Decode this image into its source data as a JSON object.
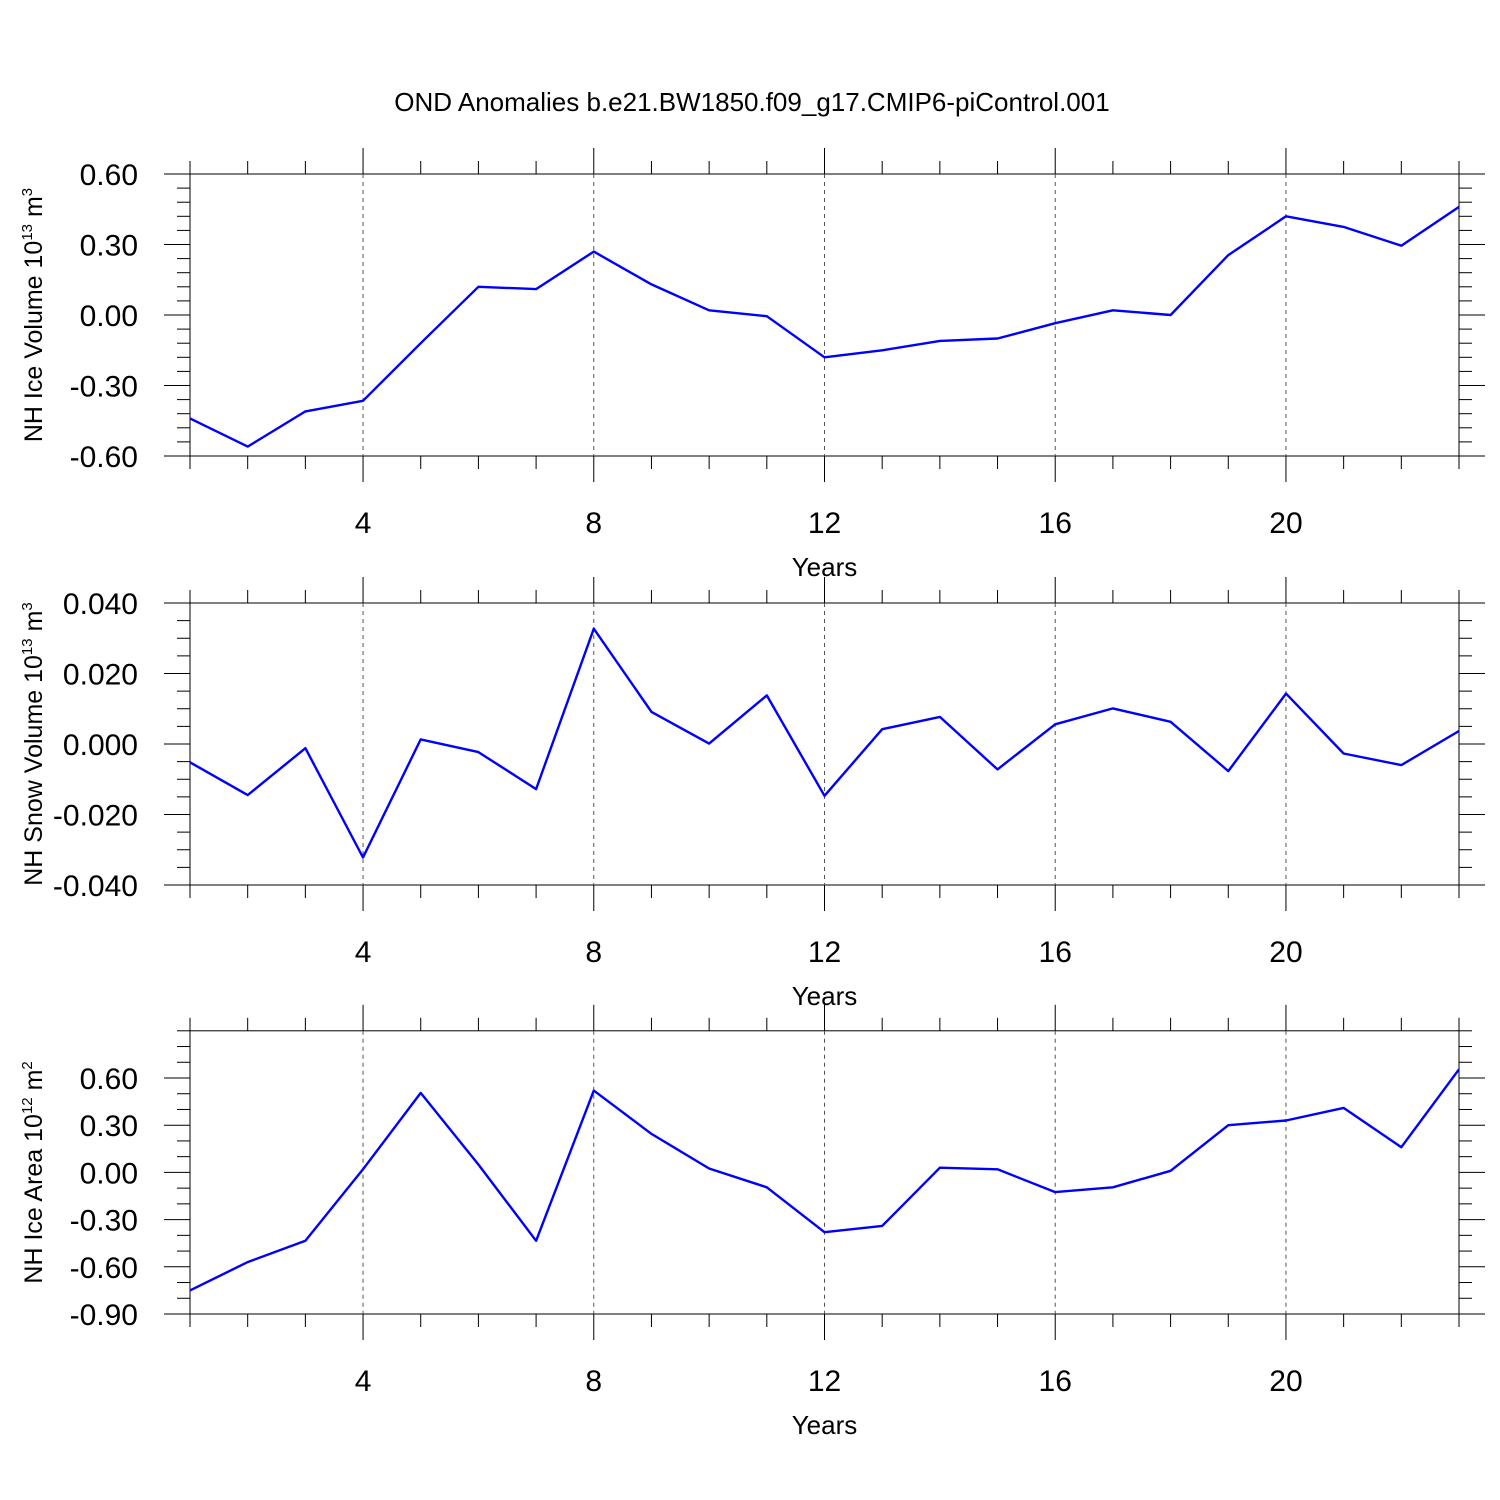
{
  "figure_title": "OND Anomalies b.e21.BW1850.f09_g17.CMIP6-piControl.001",
  "colors": {
    "series": "#0000ff",
    "axes": "#000000",
    "grid": "#555555"
  },
  "chart_data": [
    {
      "id": "ice-volume",
      "type": "line",
      "title": "",
      "xlabel": "Years",
      "ylabel": {
        "prefix": "NH Ice Volume 10",
        "exp": "13",
        "unit": " m",
        "unit_exp": "3"
      },
      "xlim": [
        1,
        23
      ],
      "ylim": [
        -0.6,
        0.6
      ],
      "xticks": [
        4,
        8,
        12,
        16,
        20
      ],
      "xtick_labels": [
        "4",
        "8",
        "12",
        "16",
        "20"
      ],
      "yticks": [
        -0.6,
        -0.3,
        0.0,
        0.3,
        0.6
      ],
      "ytick_labels": [
        "-0.60",
        "-0.30",
        "0.00",
        "0.30",
        "0.60"
      ],
      "yminor_step": 0.06,
      "grid": "x-dashed",
      "series": [
        {
          "name": "NH Ice Volume",
          "x": [
            1,
            2,
            3,
            4,
            5,
            6,
            7,
            8,
            9,
            10,
            11,
            12,
            13,
            14,
            15,
            16,
            17,
            18,
            19,
            20,
            21,
            22,
            23
          ],
          "values": [
            -0.44,
            -0.56,
            -0.41,
            -0.365,
            -0.12,
            0.12,
            0.11,
            0.27,
            0.13,
            0.02,
            -0.005,
            -0.18,
            -0.15,
            -0.11,
            -0.1,
            -0.035,
            0.02,
            0.0,
            0.255,
            0.42,
            0.375,
            0.295,
            0.46
          ]
        }
      ]
    },
    {
      "id": "snow-volume",
      "type": "line",
      "title": "",
      "xlabel": "Years",
      "ylabel": {
        "prefix": "NH Snow Volume 10",
        "exp": "13",
        "unit": " m",
        "unit_exp": "3"
      },
      "xlim": [
        1,
        23
      ],
      "ylim": [
        -0.04,
        0.04
      ],
      "xticks": [
        4,
        8,
        12,
        16,
        20
      ],
      "xtick_labels": [
        "4",
        "8",
        "12",
        "16",
        "20"
      ],
      "yticks": [
        -0.04,
        -0.02,
        0.0,
        0.02,
        0.04
      ],
      "ytick_labels": [
        "-0.040",
        "-0.020",
        "0.000",
        "0.020",
        "0.040"
      ],
      "yminor_step": 0.005,
      "grid": "x-dashed",
      "series": [
        {
          "name": "NH Snow Volume",
          "x": [
            1,
            2,
            3,
            4,
            5,
            6,
            7,
            8,
            9,
            10,
            11,
            12,
            13,
            14,
            15,
            16,
            17,
            18,
            19,
            20,
            21,
            22,
            23
          ],
          "values": [
            -0.0052,
            -0.0145,
            -0.0012,
            -0.0322,
            0.0013,
            -0.0023,
            -0.0128,
            0.0327,
            0.0091,
            0.0001,
            0.0138,
            -0.0147,
            0.0042,
            0.0077,
            -0.0072,
            0.0056,
            0.0101,
            0.0063,
            -0.0077,
            0.0143,
            -0.0027,
            -0.006,
            0.0037
          ]
        }
      ]
    },
    {
      "id": "ice-area",
      "type": "line",
      "title": "",
      "xlabel": "Years",
      "ylabel": {
        "prefix": "NH Ice Area 10",
        "exp": "12",
        "unit": " m",
        "unit_exp": "2"
      },
      "xlim": [
        1,
        23
      ],
      "ylim": [
        -0.9,
        0.9
      ],
      "xticks": [
        4,
        8,
        12,
        16,
        20
      ],
      "xtick_labels": [
        "4",
        "8",
        "12",
        "16",
        "20"
      ],
      "yticks": [
        -0.9,
        -0.6,
        -0.3,
        0.0,
        0.3,
        0.6
      ],
      "ytick_labels": [
        "-0.90",
        "-0.60",
        "-0.30",
        "0.00",
        "0.30",
        "0.60"
      ],
      "yminor_step": 0.1,
      "grid": "x-dashed",
      "series": [
        {
          "name": "NH Ice Area",
          "x": [
            1,
            2,
            3,
            4,
            5,
            6,
            7,
            8,
            9,
            10,
            11,
            12,
            13,
            14,
            15,
            16,
            17,
            18,
            19,
            20,
            21,
            22,
            23
          ],
          "values": [
            -0.75,
            -0.57,
            -0.435,
            0.02,
            0.505,
            0.05,
            -0.435,
            0.52,
            0.245,
            0.025,
            -0.095,
            -0.38,
            -0.34,
            0.03,
            0.02,
            -0.125,
            -0.095,
            0.01,
            0.3,
            0.33,
            0.41,
            0.16,
            0.655
          ]
        }
      ]
    }
  ]
}
